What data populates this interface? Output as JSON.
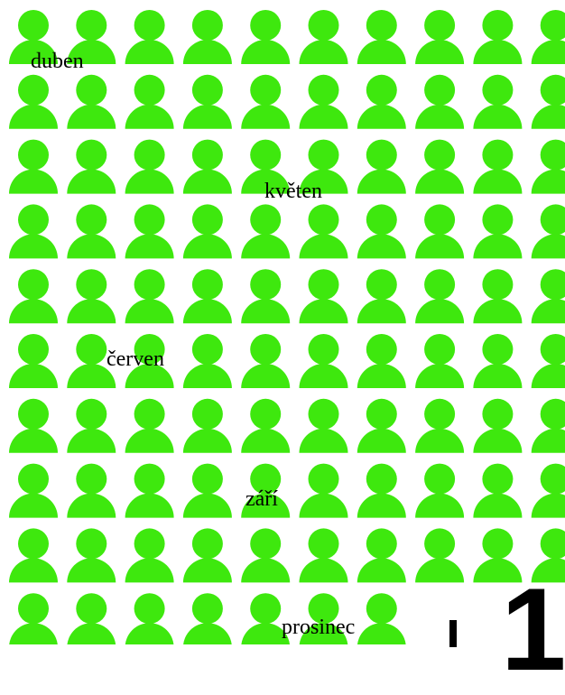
{
  "icon_color": "#3ee80e",
  "icon_name": "person-icon",
  "grid": {
    "rows": 10,
    "columns": 10
  },
  "labels": {
    "duben": "duben",
    "kveten": "květen",
    "cerven": "červen",
    "zari": "září",
    "prosinec": "prosinec"
  },
  "corner_digit": "1"
}
